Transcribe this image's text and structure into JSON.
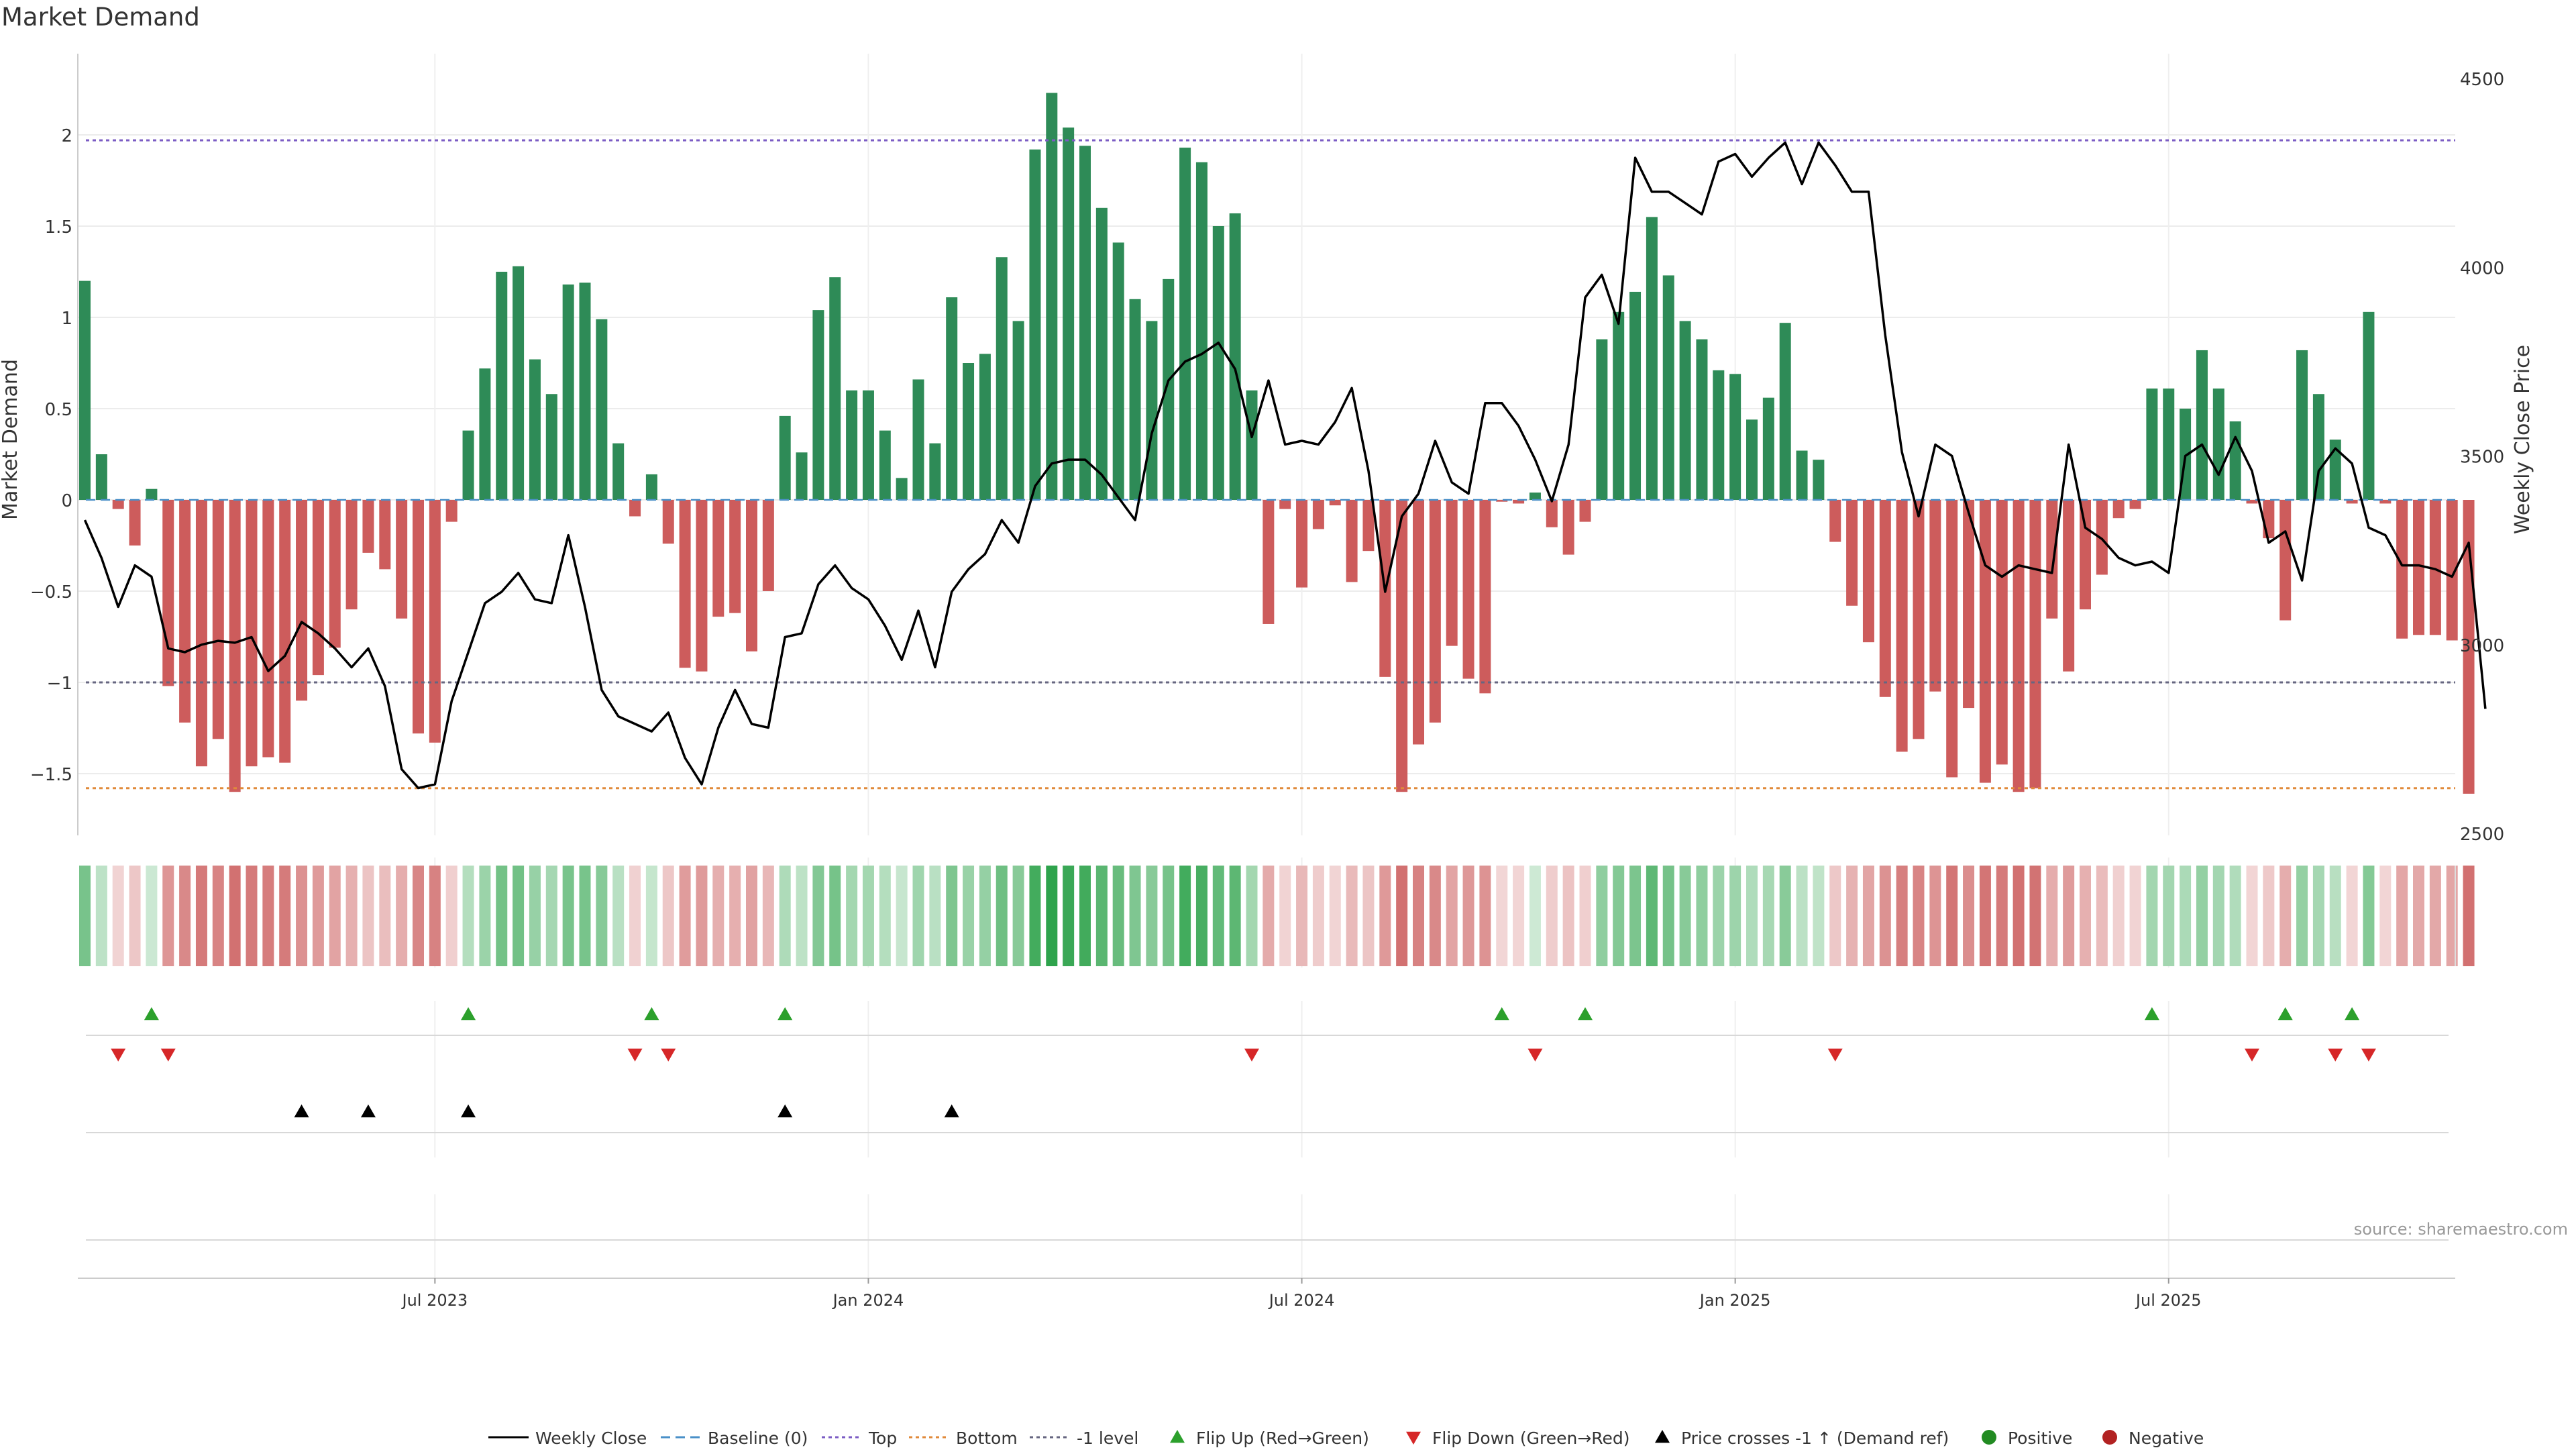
{
  "chart_data": {
    "type": "bar",
    "title": "Market Demand",
    "ylabel": "Market Demand",
    "y2label": "Weekly Close Price",
    "source": "source: sharemaestro.com",
    "ylim": [
      -1.85,
      2.45
    ],
    "y2lim": [
      2500,
      4500
    ],
    "yticks": [
      -1.5,
      -1,
      -0.5,
      0,
      0.5,
      1,
      1.5,
      2
    ],
    "ytick_labels": [
      "−1.5",
      "−1",
      "−0.5",
      "0",
      "0.5",
      "1",
      "1.5",
      "2"
    ],
    "y2ticks": [
      2500,
      3000,
      3500,
      4000,
      4500
    ],
    "y2tick_labels": [
      "2500",
      "3000",
      "3500",
      "4000",
      "4500"
    ],
    "xticks": [
      {
        "index": 21,
        "label": "Jul 2023"
      },
      {
        "index": 47,
        "label": "Jan 2024"
      },
      {
        "index": 73,
        "label": "Jul 2024"
      },
      {
        "index": 99,
        "label": "Jan 2025"
      },
      {
        "index": 125,
        "label": "Jul 2025"
      }
    ],
    "levels": {
      "top": 1.97,
      "minus_one": -1.0,
      "bottom": -1.58
    },
    "colors": {
      "positive": "#2e8b57",
      "negative": "#cd5c5c",
      "price": "#000000",
      "top": "#7b5cc4",
      "bottom": "#e08a3a",
      "minus_one": "#666680",
      "baseline": "#4a90c8",
      "flip_up": "#2ca02c",
      "flip_down": "#d62728",
      "cross": "#000000"
    },
    "demand": [
      1.2,
      0.25,
      -0.05,
      -0.25,
      0.06,
      -1.02,
      -1.22,
      -1.46,
      -1.31,
      -1.6,
      -1.46,
      -1.41,
      -1.44,
      -1.1,
      -0.96,
      -0.81,
      -0.6,
      -0.29,
      -0.38,
      -0.65,
      -1.28,
      -1.33,
      -0.12,
      0.38,
      0.72,
      1.25,
      1.28,
      0.77,
      0.58,
      1.18,
      1.19,
      0.99,
      0.31,
      -0.09,
      0.14,
      -0.24,
      -0.92,
      -0.94,
      -0.64,
      -0.62,
      -0.83,
      -0.5,
      0.46,
      0.26,
      1.04,
      1.22,
      0.6,
      0.6,
      0.38,
      0.12,
      0.66,
      0.31,
      1.11,
      0.75,
      0.8,
      1.33,
      0.98,
      1.92,
      2.23,
      2.04,
      1.94,
      1.6,
      1.41,
      1.1,
      0.98,
      1.21,
      1.93,
      1.85,
      1.5,
      1.57,
      0.6,
      -0.68,
      -0.05,
      -0.48,
      -0.16,
      -0.03,
      -0.45,
      -0.28,
      -0.97,
      -1.6,
      -1.34,
      -1.22,
      -0.8,
      -0.98,
      -1.06,
      -0.01,
      -0.02,
      0.04,
      -0.15,
      -0.3,
      -0.12,
      0.88,
      1.03,
      1.14,
      1.55,
      1.23,
      0.98,
      0.88,
      0.71,
      0.69,
      0.44,
      0.56,
      0.97,
      0.27,
      0.22,
      -0.23,
      -0.58,
      -0.78,
      -1.08,
      -1.38,
      -1.31,
      -1.05,
      -1.52,
      -1.14,
      -1.55,
      -1.45,
      -1.6,
      -1.58,
      -0.65,
      -0.94,
      -0.6,
      -0.41,
      -0.1,
      -0.05,
      0.61,
      0.61,
      0.5,
      0.82,
      0.61,
      0.43,
      -0.02,
      -0.21,
      -0.66,
      0.82,
      0.58,
      0.33,
      -0.02,
      1.03,
      -0.02,
      -0.76,
      -0.74,
      -0.74,
      -0.77,
      -1.61
    ],
    "price": [
      3330,
      3230,
      3100,
      3210,
      3180,
      2990,
      2980,
      3000,
      3010,
      3005,
      3020,
      2930,
      2970,
      3060,
      3030,
      2990,
      2940,
      2990,
      2890,
      2670,
      2620,
      2630,
      2850,
      2980,
      3110,
      3140,
      3190,
      3120,
      3110,
      3290,
      3100,
      2880,
      2810,
      2790,
      2770,
      2820,
      2700,
      2630,
      2780,
      2880,
      2790,
      2780,
      3020,
      3030,
      3160,
      3210,
      3150,
      3120,
      3050,
      2960,
      3090,
      2940,
      3140,
      3200,
      3240,
      3330,
      3270,
      3420,
      3480,
      3490,
      3490,
      3450,
      3390,
      3330,
      3560,
      3700,
      3750,
      3770,
      3800,
      3730,
      3550,
      3700,
      3530,
      3540,
      3530,
      3590,
      3680,
      3460,
      3140,
      3340,
      3400,
      3540,
      3430,
      3400,
      3640,
      3640,
      3580,
      3490,
      3380,
      3530,
      3920,
      3980,
      3850,
      4290,
      4200,
      4200,
      4170,
      4140,
      4280,
      4300,
      4240,
      4290,
      4330,
      4220,
      4330,
      4270,
      4200,
      4200,
      3820,
      3510,
      3340,
      3530,
      3500,
      3350,
      3210,
      3180,
      3210,
      3200,
      3190,
      3530,
      3310,
      3280,
      3230,
      3210,
      3220,
      3190,
      3500,
      3530,
      3450,
      3550,
      3460,
      3270,
      3300,
      3170,
      3460,
      3520,
      3480,
      3310,
      3290,
      3210,
      3210,
      3200,
      3180,
      3270,
      2830
    ],
    "flip_up_idx": [
      4,
      23,
      34,
      42,
      85,
      90,
      124,
      132,
      136
    ],
    "flip_down_idx": [
      2,
      5,
      33,
      35,
      70,
      87,
      105,
      130,
      135,
      137
    ],
    "cross_idx": [
      13,
      17,
      23,
      42,
      52
    ],
    "legend": [
      {
        "label": "Weekly Close",
        "kind": "line-solid",
        "color": "#000000"
      },
      {
        "label": "Baseline (0)",
        "kind": "line-dash",
        "color": "#4a90c8"
      },
      {
        "label": "Top",
        "kind": "line-dot",
        "color": "#7b5cc4"
      },
      {
        "label": "Bottom",
        "kind": "line-dot",
        "color": "#e08a3a"
      },
      {
        "label": "-1 level",
        "kind": "line-dot",
        "color": "#666680"
      },
      {
        "label": "Flip Up (Red→Green)",
        "kind": "tri-up",
        "color": "#2ca02c"
      },
      {
        "label": "Flip Down (Green→Red)",
        "kind": "tri-down",
        "color": "#d62728"
      },
      {
        "label": "Price crosses -1 ↑ (Demand ref)",
        "kind": "tri-up",
        "color": "#000000"
      },
      {
        "label": "Positive",
        "kind": "dot",
        "color": "#228b22"
      },
      {
        "label": "Negative",
        "kind": "dot",
        "color": "#b22222"
      }
    ]
  }
}
